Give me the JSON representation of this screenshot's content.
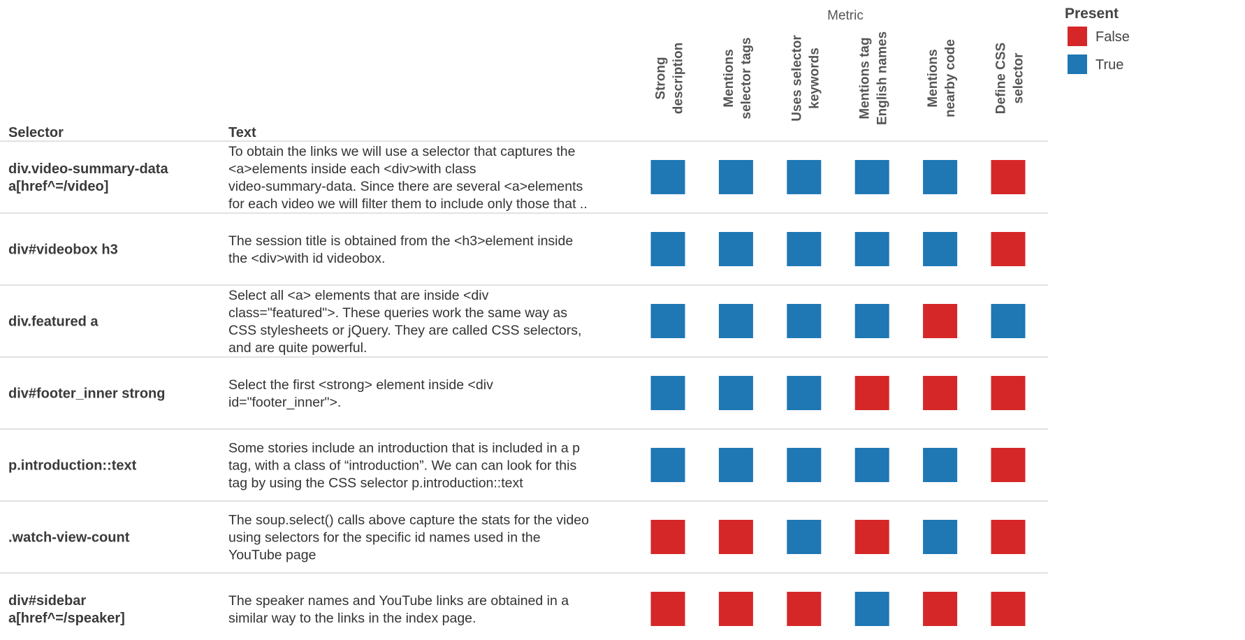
{
  "chart_data": {
    "type": "heatmap",
    "title": "",
    "column_header": "Metric",
    "row_headers": [
      "Selector",
      "Text"
    ],
    "metrics": [
      [
        "Strong",
        "description"
      ],
      [
        "Mentions",
        "selector tags"
      ],
      [
        "Uses selector",
        "keywords"
      ],
      [
        "Mentions tag",
        "English names"
      ],
      [
        "Mentions",
        "nearby code"
      ],
      [
        "Define CSS",
        "selector"
      ]
    ],
    "rows": [
      {
        "selector": [
          "div.video-summary-data",
          "a[href^=/video]"
        ],
        "text": [
          "To obtain the links we will use a selector that captures the",
          "<a>elements inside each <div>with class",
          "video-summary-data. Since there are several <a>elements",
          "for each video we will filter them to include only those that .."
        ],
        "values": [
          true,
          true,
          true,
          true,
          true,
          false
        ]
      },
      {
        "selector": [
          "div#videobox h3"
        ],
        "text": [
          "The session title is obtained from the <h3>element inside",
          "the <div>with id videobox."
        ],
        "values": [
          true,
          true,
          true,
          true,
          true,
          false
        ]
      },
      {
        "selector": [
          "div.featured a"
        ],
        "text": [
          "Select all <a> elements that are inside <div",
          "class=\"featured\">. These queries work the same way as",
          "CSS stylesheets or jQuery. They are called CSS selectors,",
          "and are quite powerful."
        ],
        "values": [
          true,
          true,
          true,
          true,
          false,
          true
        ]
      },
      {
        "selector": [
          "div#footer_inner strong"
        ],
        "text": [
          "Select the first <strong> element inside <div",
          "id=\"footer_inner\">."
        ],
        "values": [
          true,
          true,
          true,
          false,
          false,
          false
        ]
      },
      {
        "selector": [
          "p.introduction::text"
        ],
        "text": [
          "Some stories include an introduction that is included in a p",
          "tag, with a class of “introduction”. We can can look for this",
          "tag by using the CSS selector p.introduction::text"
        ],
        "values": [
          true,
          true,
          true,
          true,
          true,
          false
        ]
      },
      {
        "selector": [
          ".watch-view-count"
        ],
        "text": [
          "The soup.select() calls above capture the stats for the video",
          "using selectors for the specific id names used in the",
          "YouTube page"
        ],
        "values": [
          false,
          false,
          true,
          false,
          true,
          false
        ]
      },
      {
        "selector": [
          "div#sidebar",
          "a[href^=/speaker]"
        ],
        "text": [
          "The speaker names and YouTube links are obtained in a",
          "similar way to the links in the index page."
        ],
        "values": [
          false,
          false,
          false,
          true,
          false,
          false
        ]
      }
    ],
    "legend": {
      "title": "Present",
      "placement": "top-right",
      "items": [
        {
          "label": "False",
          "value": false,
          "color": "#d62728"
        },
        {
          "label": "True",
          "value": true,
          "color": "#1f77b4"
        }
      ]
    }
  }
}
